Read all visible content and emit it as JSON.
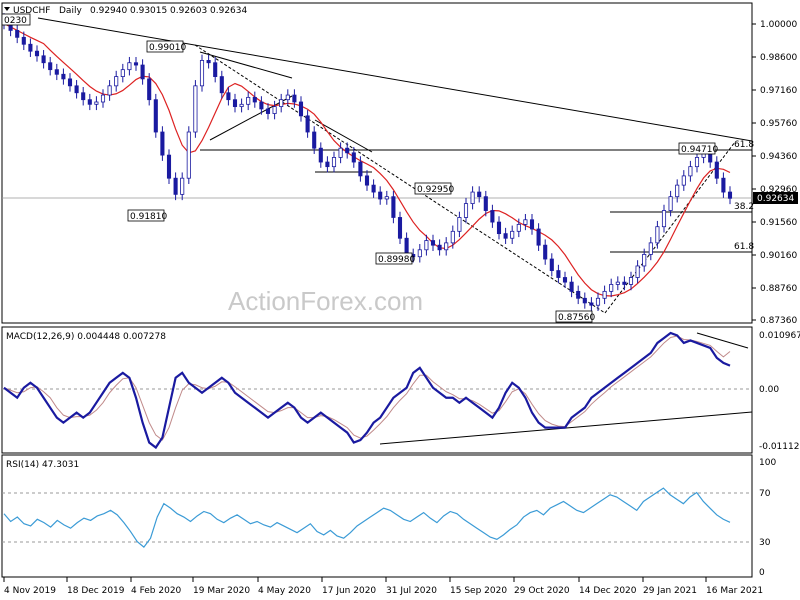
{
  "chart_data": [
    {
      "type": "candlestick",
      "panel": "price",
      "symbol": "USDCHF",
      "timeframe": "Daily",
      "header_values": [
        "0.92940",
        "0.93015",
        "0.92603",
        "0.92634"
      ],
      "watermark": "ActionForex.com",
      "ylim": [
        0.8736,
        1.01
      ],
      "y_ticks": [
        "1.00000",
        "0.98600",
        "0.97160",
        "0.95760",
        "0.94360",
        "0.92960",
        "0.91560",
        "0.90160",
        "0.88760",
        "0.87360"
      ],
      "last_price": "0.92634",
      "x_ticks": [
        "4 Nov 2019",
        "18 Dec 2019",
        "4 Feb 2020",
        "19 Mar 2020",
        "4 May 2020",
        "17 Jun 2020",
        "31 Jul 2020",
        "15 Sep 2020",
        "29 Oct 2020",
        "14 Dec 2020",
        "29 Jan 2021",
        "16 Mar 2021"
      ],
      "close_series": [
        1.002,
        0.999,
        0.996,
        0.993,
        0.99,
        0.988,
        0.985,
        0.982,
        0.98,
        0.978,
        0.975,
        0.972,
        0.969,
        0.967,
        0.968,
        0.971,
        0.975,
        0.979,
        0.982,
        0.985,
        0.984,
        0.978,
        0.969,
        0.955,
        0.945,
        0.935,
        0.928,
        0.935,
        0.955,
        0.975,
        0.986,
        0.985,
        0.979,
        0.972,
        0.969,
        0.966,
        0.967,
        0.97,
        0.968,
        0.965,
        0.963,
        0.966,
        0.969,
        0.971,
        0.968,
        0.962,
        0.955,
        0.948,
        0.942,
        0.94,
        0.944,
        0.948,
        0.946,
        0.942,
        0.936,
        0.932,
        0.929,
        0.926,
        0.927,
        0.918,
        0.909,
        0.902,
        0.901,
        0.904,
        0.908,
        0.906,
        0.904,
        0.907,
        0.912,
        0.918,
        0.924,
        0.929,
        0.927,
        0.921,
        0.916,
        0.911,
        0.909,
        0.912,
        0.915,
        0.917,
        0.913,
        0.906,
        0.9,
        0.895,
        0.892,
        0.89,
        0.886,
        0.883,
        0.881,
        0.88,
        0.883,
        0.886,
        0.889,
        0.89,
        0.889,
        0.892,
        0.897,
        0.902,
        0.907,
        0.914,
        0.921,
        0.927,
        0.932,
        0.936,
        0.94,
        0.944,
        0.946,
        0.942,
        0.935,
        0.929,
        0.9263
      ],
      "annotations": [
        {
          "label": "0.99010",
          "value": 0.9901
        },
        {
          "label": "0.91810",
          "value": 0.9181
        },
        {
          "label": "0.92950",
          "value": 0.9295
        },
        {
          "label": "0.89980",
          "value": 0.8998
        },
        {
          "label": "0.87560",
          "value": 0.8756
        },
        {
          "label": "0.94710",
          "value": 0.9471
        },
        {
          "label": "1.00230",
          "value": 1.0023
        }
      ],
      "fib_labels": [
        "61.8",
        "38.2",
        "61.8"
      ],
      "colors": {
        "candle": "#1a1aa0",
        "ma": "#dd2222",
        "trend": "#000000",
        "last_price_box": "#000000"
      }
    },
    {
      "type": "line",
      "panel": "macd",
      "title": "MACD(12,26,9) 0.004448 0.007278",
      "ylim": [
        -0.0125,
        0.0116
      ],
      "y_ticks": [
        "0.010967",
        "0.00",
        "-0.011127"
      ],
      "series": [
        {
          "values": [
            0.0,
            -0.001,
            -0.002,
            0.0,
            0.001,
            0.0,
            -0.002,
            -0.004,
            -0.006,
            -0.007,
            -0.006,
            -0.005,
            -0.006,
            -0.005,
            -0.003,
            -0.001,
            0.001,
            0.002,
            0.003,
            0.002,
            -0.002,
            -0.007,
            -0.011,
            -0.012,
            -0.01,
            -0.004,
            0.002,
            0.003,
            0.001,
            0.0,
            -0.001,
            0.0,
            0.001,
            0.002,
            0.001,
            -0.001,
            -0.002,
            -0.003,
            -0.004,
            -0.005,
            -0.006,
            -0.005,
            -0.004,
            -0.003,
            -0.004,
            -0.006,
            -0.007,
            -0.006,
            -0.005,
            -0.006,
            -0.007,
            -0.008,
            -0.009,
            -0.011,
            -0.0105,
            -0.009,
            -0.007,
            -0.006,
            -0.004,
            -0.002,
            -0.001,
            0.0,
            0.003,
            0.004,
            0.002,
            0.0,
            -0.001,
            -0.002,
            -0.002,
            -0.003,
            -0.002,
            -0.003,
            -0.004,
            -0.005,
            -0.006,
            -0.004,
            -0.001,
            0.001,
            0.0,
            -0.002,
            -0.005,
            -0.007,
            -0.008,
            -0.008,
            -0.008,
            -0.008,
            -0.006,
            -0.005,
            -0.004,
            -0.002,
            -0.001,
            0.0,
            0.001,
            0.002,
            0.003,
            0.004,
            0.005,
            0.006,
            0.007,
            0.009,
            0.01,
            0.011,
            0.0105,
            0.009,
            0.0095,
            0.009,
            0.0085,
            0.008,
            0.006,
            0.005,
            0.004448
          ]
        },
        {
          "values": [
            0.0,
            -0.0005,
            -0.001,
            -0.0008,
            0.0,
            0.0002,
            -0.0008,
            -0.002,
            -0.004,
            -0.0055,
            -0.006,
            -0.0058,
            -0.0058,
            -0.0055,
            -0.0045,
            -0.003,
            -0.001,
            0.0005,
            0.0018,
            0.002,
            0.0,
            -0.0035,
            -0.007,
            -0.0095,
            -0.0105,
            -0.008,
            -0.004,
            -0.0005,
            0.0008,
            0.0006,
            0.0,
            -0.0002,
            0.0003,
            0.0012,
            0.0011,
            0.0002,
            -0.0008,
            -0.0018,
            -0.0028,
            -0.0038,
            -0.0048,
            -0.005,
            -0.0046,
            -0.004,
            -0.004,
            -0.005,
            -0.006,
            -0.006,
            -0.0056,
            -0.0058,
            -0.0064,
            -0.0072,
            -0.008,
            -0.0095,
            -0.0101,
            -0.0097,
            -0.0085,
            -0.0072,
            -0.0058,
            -0.004,
            -0.0025,
            -0.0012,
            0.0008,
            0.0025,
            0.0025,
            0.0012,
            0.0002,
            -0.0008,
            -0.0014,
            -0.0022,
            -0.0022,
            -0.0026,
            -0.0033,
            -0.0042,
            -0.0051,
            -0.0046,
            -0.0028,
            -0.0008,
            -0.0002,
            -0.0012,
            -0.0033,
            -0.0052,
            -0.0066,
            -0.0073,
            -0.0077,
            -0.0078,
            -0.0068,
            -0.0058,
            -0.0048,
            -0.0033,
            -0.0021,
            -0.001,
            0.0002,
            0.0012,
            0.0022,
            0.0032,
            0.0042,
            0.0052,
            0.0062,
            0.0076,
            0.009,
            0.0101,
            0.0104,
            0.0097,
            0.0096,
            0.0093,
            0.0089,
            0.0085,
            0.0073,
            0.0062,
            0.007278
          ]
        }
      ],
      "colors": {
        "macd": "#1a1aa0",
        "signal": "#c08a8a"
      }
    },
    {
      "type": "line",
      "panel": "rsi",
      "title": "RSI(14) 47.3031",
      "ylim": [
        0,
        105
      ],
      "y_ticks": [
        "100",
        "70",
        "30",
        "0"
      ],
      "levels": [
        70,
        30
      ],
      "series": [
        {
          "values": [
            55,
            48,
            52,
            46,
            44,
            50,
            47,
            43,
            49,
            45,
            42,
            47,
            51,
            49,
            53,
            55,
            58,
            54,
            47,
            39,
            30,
            25,
            33,
            52,
            64,
            60,
            55,
            52,
            48,
            53,
            57,
            55,
            50,
            47,
            51,
            54,
            50,
            46,
            48,
            45,
            43,
            47,
            44,
            41,
            38,
            42,
            46,
            39,
            36,
            40,
            35,
            33,
            38,
            44,
            48,
            52,
            56,
            60,
            58,
            54,
            50,
            48,
            52,
            56,
            51,
            47,
            53,
            57,
            55,
            50,
            46,
            42,
            38,
            34,
            32,
            36,
            41,
            45,
            52,
            56,
            58,
            54,
            60,
            63,
            66,
            62,
            58,
            56,
            60,
            64,
            68,
            72,
            70,
            66,
            62,
            58,
            66,
            70,
            74,
            78,
            72,
            68,
            64,
            70,
            74,
            66,
            60,
            54,
            50,
            47.3
          ]
        }
      ],
      "colors": {
        "rsi": "#3b9bd6"
      }
    }
  ]
}
